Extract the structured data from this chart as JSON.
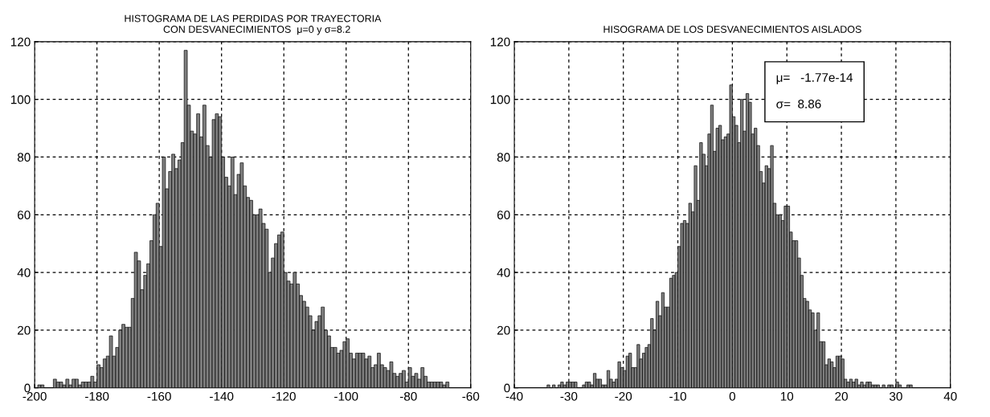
{
  "chart_data": [
    {
      "type": "histogram",
      "title": "HISTOGRAMA DE LAS PERDIDAS POR TRAYECTORIA\n   CON DESVANECIMIENTOS  μ=0 y σ=8.2",
      "color": "#7f7f7f",
      "grid": true,
      "bins": [
        -199,
        -198,
        -197,
        -196,
        -195,
        -194,
        -193,
        -192,
        -191,
        -190,
        -189,
        -188,
        -187,
        -186,
        -185,
        -184,
        -183,
        -182,
        -181,
        -180,
        -179,
        -178,
        -177,
        -176,
        -175,
        -174,
        -173,
        -172,
        -171,
        -170,
        -169,
        -168,
        -167,
        -166,
        -165,
        -164,
        -163,
        -162,
        -161,
        -160,
        -159,
        -158,
        -157,
        -156,
        -155,
        -154,
        -153,
        -152,
        -151,
        -150,
        -149,
        -148,
        -147,
        -146,
        -145,
        -144,
        -143,
        -142,
        -141,
        -140,
        -139,
        -138,
        -137,
        -136,
        -135,
        -134,
        -133,
        -132,
        -131,
        -130,
        -129,
        -128,
        -127,
        -126,
        -125,
        -124,
        -123,
        -122,
        -121,
        -120,
        -119,
        -118,
        -117,
        -116,
        -115,
        -114,
        -113,
        -112,
        -111,
        -110,
        -109,
        -108,
        -107,
        -106,
        -105,
        -104,
        -103,
        -102,
        -101,
        -100,
        -99,
        -98,
        -97,
        -96,
        -95,
        -94,
        -93,
        -92,
        -91,
        -90,
        -89,
        -88,
        -87,
        -86,
        -85,
        -84,
        -83,
        -82,
        -81,
        -80,
        -79,
        -78,
        -77,
        -76,
        -75,
        -74,
        -73,
        -72,
        -71,
        -70,
        -69,
        -68,
        -67
      ],
      "values": [
        1,
        1,
        0,
        0,
        0,
        3,
        2,
        2,
        1,
        3,
        1,
        3,
        3,
        1,
        2,
        2,
        2,
        4,
        2,
        8,
        7,
        10,
        11,
        18,
        11,
        14,
        20,
        22,
        21,
        21,
        31,
        47,
        44,
        34,
        39,
        43,
        51,
        60,
        64,
        49,
        80,
        69,
        75,
        81,
        76,
        79,
        85,
        117,
        98,
        89,
        88,
        95,
        87,
        98,
        84,
        80,
        93,
        95,
        94,
        80,
        73,
        70,
        80,
        67,
        74,
        78,
        70,
        66,
        65,
        60,
        60,
        62,
        57,
        55,
        40,
        45,
        50,
        53,
        54,
        40,
        37,
        36,
        40,
        36,
        32,
        30,
        28,
        25,
        20,
        23,
        25,
        28,
        20,
        18,
        14,
        14,
        12,
        13,
        16,
        17,
        12,
        10,
        12,
        12,
        12,
        10,
        11,
        7,
        8,
        12,
        8,
        7,
        6,
        9,
        5,
        4,
        5,
        6,
        2,
        7,
        4,
        5,
        3,
        7,
        4,
        2,
        2,
        2,
        2,
        2,
        1,
        2
      ],
      "xlim": [
        -200,
        -60
      ],
      "xticks": [
        -200,
        -180,
        -160,
        -140,
        -120,
        -100,
        -80,
        -60
      ],
      "ylim": [
        0,
        120
      ],
      "yticks": [
        0,
        20,
        40,
        60,
        80,
        100,
        120
      ]
    },
    {
      "type": "histogram",
      "title": "HISOGRAMA DE LOS DESVANECIMIENTOS AISLADOS",
      "color": "#7f7f7f",
      "grid": true,
      "annotations": [
        "μ=   -1.77e-14",
        "σ=  8.86"
      ],
      "bins": [
        -34,
        -33.5,
        -33,
        -32.5,
        -32,
        -31.5,
        -31,
        -30.5,
        -30,
        -29.5,
        -29,
        -28.5,
        -28,
        -27.5,
        -27,
        -26.5,
        -26,
        -25.5,
        -25,
        -24.5,
        -24,
        -23.5,
        -23,
        -22.5,
        -22,
        -21.5,
        -21,
        -20.5,
        -20,
        -19.5,
        -19,
        -18.5,
        -18,
        -17.5,
        -17,
        -16.5,
        -16,
        -15.5,
        -15,
        -14.5,
        -14,
        -13.5,
        -13,
        -12.5,
        -12,
        -11.5,
        -11,
        -10.5,
        -10,
        -9.5,
        -9,
        -8.5,
        -8,
        -7.5,
        -7,
        -6.5,
        -6,
        -5.5,
        -5,
        -4.5,
        -4,
        -3.5,
        -3,
        -2.5,
        -2,
        -1.5,
        -1,
        -0.5,
        0,
        0.5,
        1,
        1.5,
        2,
        2.5,
        3,
        3.5,
        4,
        4.5,
        5,
        5.5,
        6,
        6.5,
        7,
        7.5,
        8,
        8.5,
        9,
        9.5,
        10,
        10.5,
        11,
        11.5,
        12,
        12.5,
        13,
        13.5,
        14,
        14.5,
        15,
        15.5,
        16,
        16.5,
        17,
        17.5,
        18,
        18.5,
        19,
        19.5,
        20,
        20.5,
        21,
        21.5,
        22,
        22.5,
        23,
        23.5,
        24,
        24.5,
        25,
        25.5,
        26,
        26.5,
        27,
        27.5,
        28,
        28.5,
        29,
        29.5,
        30,
        30.5,
        31,
        31.5,
        32,
        32.5,
        33
      ],
      "values": [
        1,
        0,
        1,
        0,
        1,
        2,
        1,
        2,
        2,
        2,
        2,
        0,
        0,
        1,
        2,
        2,
        1,
        5,
        3,
        3,
        1,
        1,
        6,
        3,
        2,
        3,
        9,
        7,
        6,
        11,
        12,
        7,
        7,
        15,
        10,
        12,
        14,
        15,
        24,
        20,
        30,
        25,
        33,
        28,
        28,
        38,
        39,
        40,
        49,
        57,
        58,
        57,
        64,
        61,
        77,
        65,
        85,
        81,
        77,
        88,
        98,
        82,
        90,
        91,
        86,
        87,
        88,
        105,
        94,
        91,
        85,
        100,
        89,
        102,
        99,
        88,
        90,
        84,
        75,
        71,
        77,
        76,
        84,
        64,
        60,
        60,
        58,
        63,
        63,
        54,
        51,
        51,
        45,
        39,
        31,
        30,
        27,
        26,
        20,
        26,
        16,
        16,
        8,
        10,
        9,
        7,
        11,
        11,
        10,
        3,
        2,
        3,
        2,
        3,
        1,
        2,
        1,
        2,
        2,
        1,
        1,
        1,
        0,
        1,
        0,
        1,
        1,
        0,
        2,
        1,
        0,
        0,
        1,
        1
      ],
      "xlim": [
        -40,
        40
      ],
      "xticks": [
        -40,
        -30,
        -20,
        -10,
        0,
        10,
        20,
        30,
        40
      ],
      "ylim": [
        0,
        120
      ],
      "yticks": [
        0,
        20,
        40,
        60,
        80,
        100,
        120
      ]
    }
  ]
}
